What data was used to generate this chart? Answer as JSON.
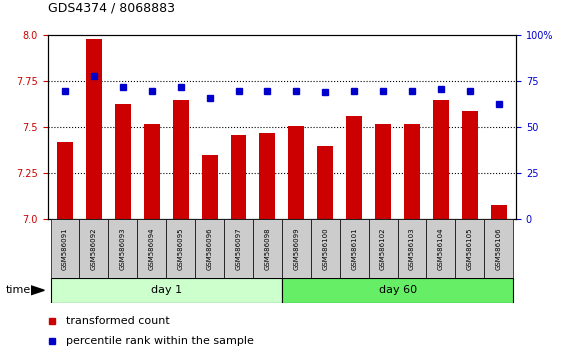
{
  "title": "GDS4374 / 8068883",
  "samples": [
    "GSM586091",
    "GSM586092",
    "GSM586093",
    "GSM586094",
    "GSM586095",
    "GSM586096",
    "GSM586097",
    "GSM586098",
    "GSM586099",
    "GSM586100",
    "GSM586101",
    "GSM586102",
    "GSM586103",
    "GSM586104",
    "GSM586105",
    "GSM586106"
  ],
  "bar_values": [
    7.42,
    7.98,
    7.63,
    7.52,
    7.65,
    7.35,
    7.46,
    7.47,
    7.51,
    7.4,
    7.56,
    7.52,
    7.52,
    7.65,
    7.59,
    7.08
  ],
  "percentile_values": [
    70,
    78,
    72,
    70,
    72,
    66,
    70,
    70,
    70,
    69,
    70,
    70,
    70,
    71,
    70,
    63
  ],
  "bar_color": "#cc0000",
  "percentile_color": "#0000cc",
  "ylim_left": [
    7.0,
    8.0
  ],
  "ylim_right": [
    0,
    100
  ],
  "yticks_left": [
    7.0,
    7.25,
    7.5,
    7.75,
    8.0
  ],
  "yticks_right": [
    0,
    25,
    50,
    75,
    100
  ],
  "ytick_labels_right": [
    "0",
    "25",
    "50",
    "75",
    "100%"
  ],
  "day1_samples": 8,
  "day60_samples": 8,
  "day1_label": "day 1",
  "day60_label": "day 60",
  "time_label": "time",
  "legend_bar": "transformed count",
  "legend_pct": "percentile rank within the sample",
  "bar_color_legend": "#cc0000",
  "pct_color_legend": "#0000cc",
  "day1_color": "#ccffcc",
  "day60_color": "#66ee66",
  "header_bg": "#cccccc",
  "bar_width": 0.55,
  "title_fontsize": 9,
  "tick_fontsize": 7,
  "label_fontsize": 8,
  "sample_fontsize": 5
}
